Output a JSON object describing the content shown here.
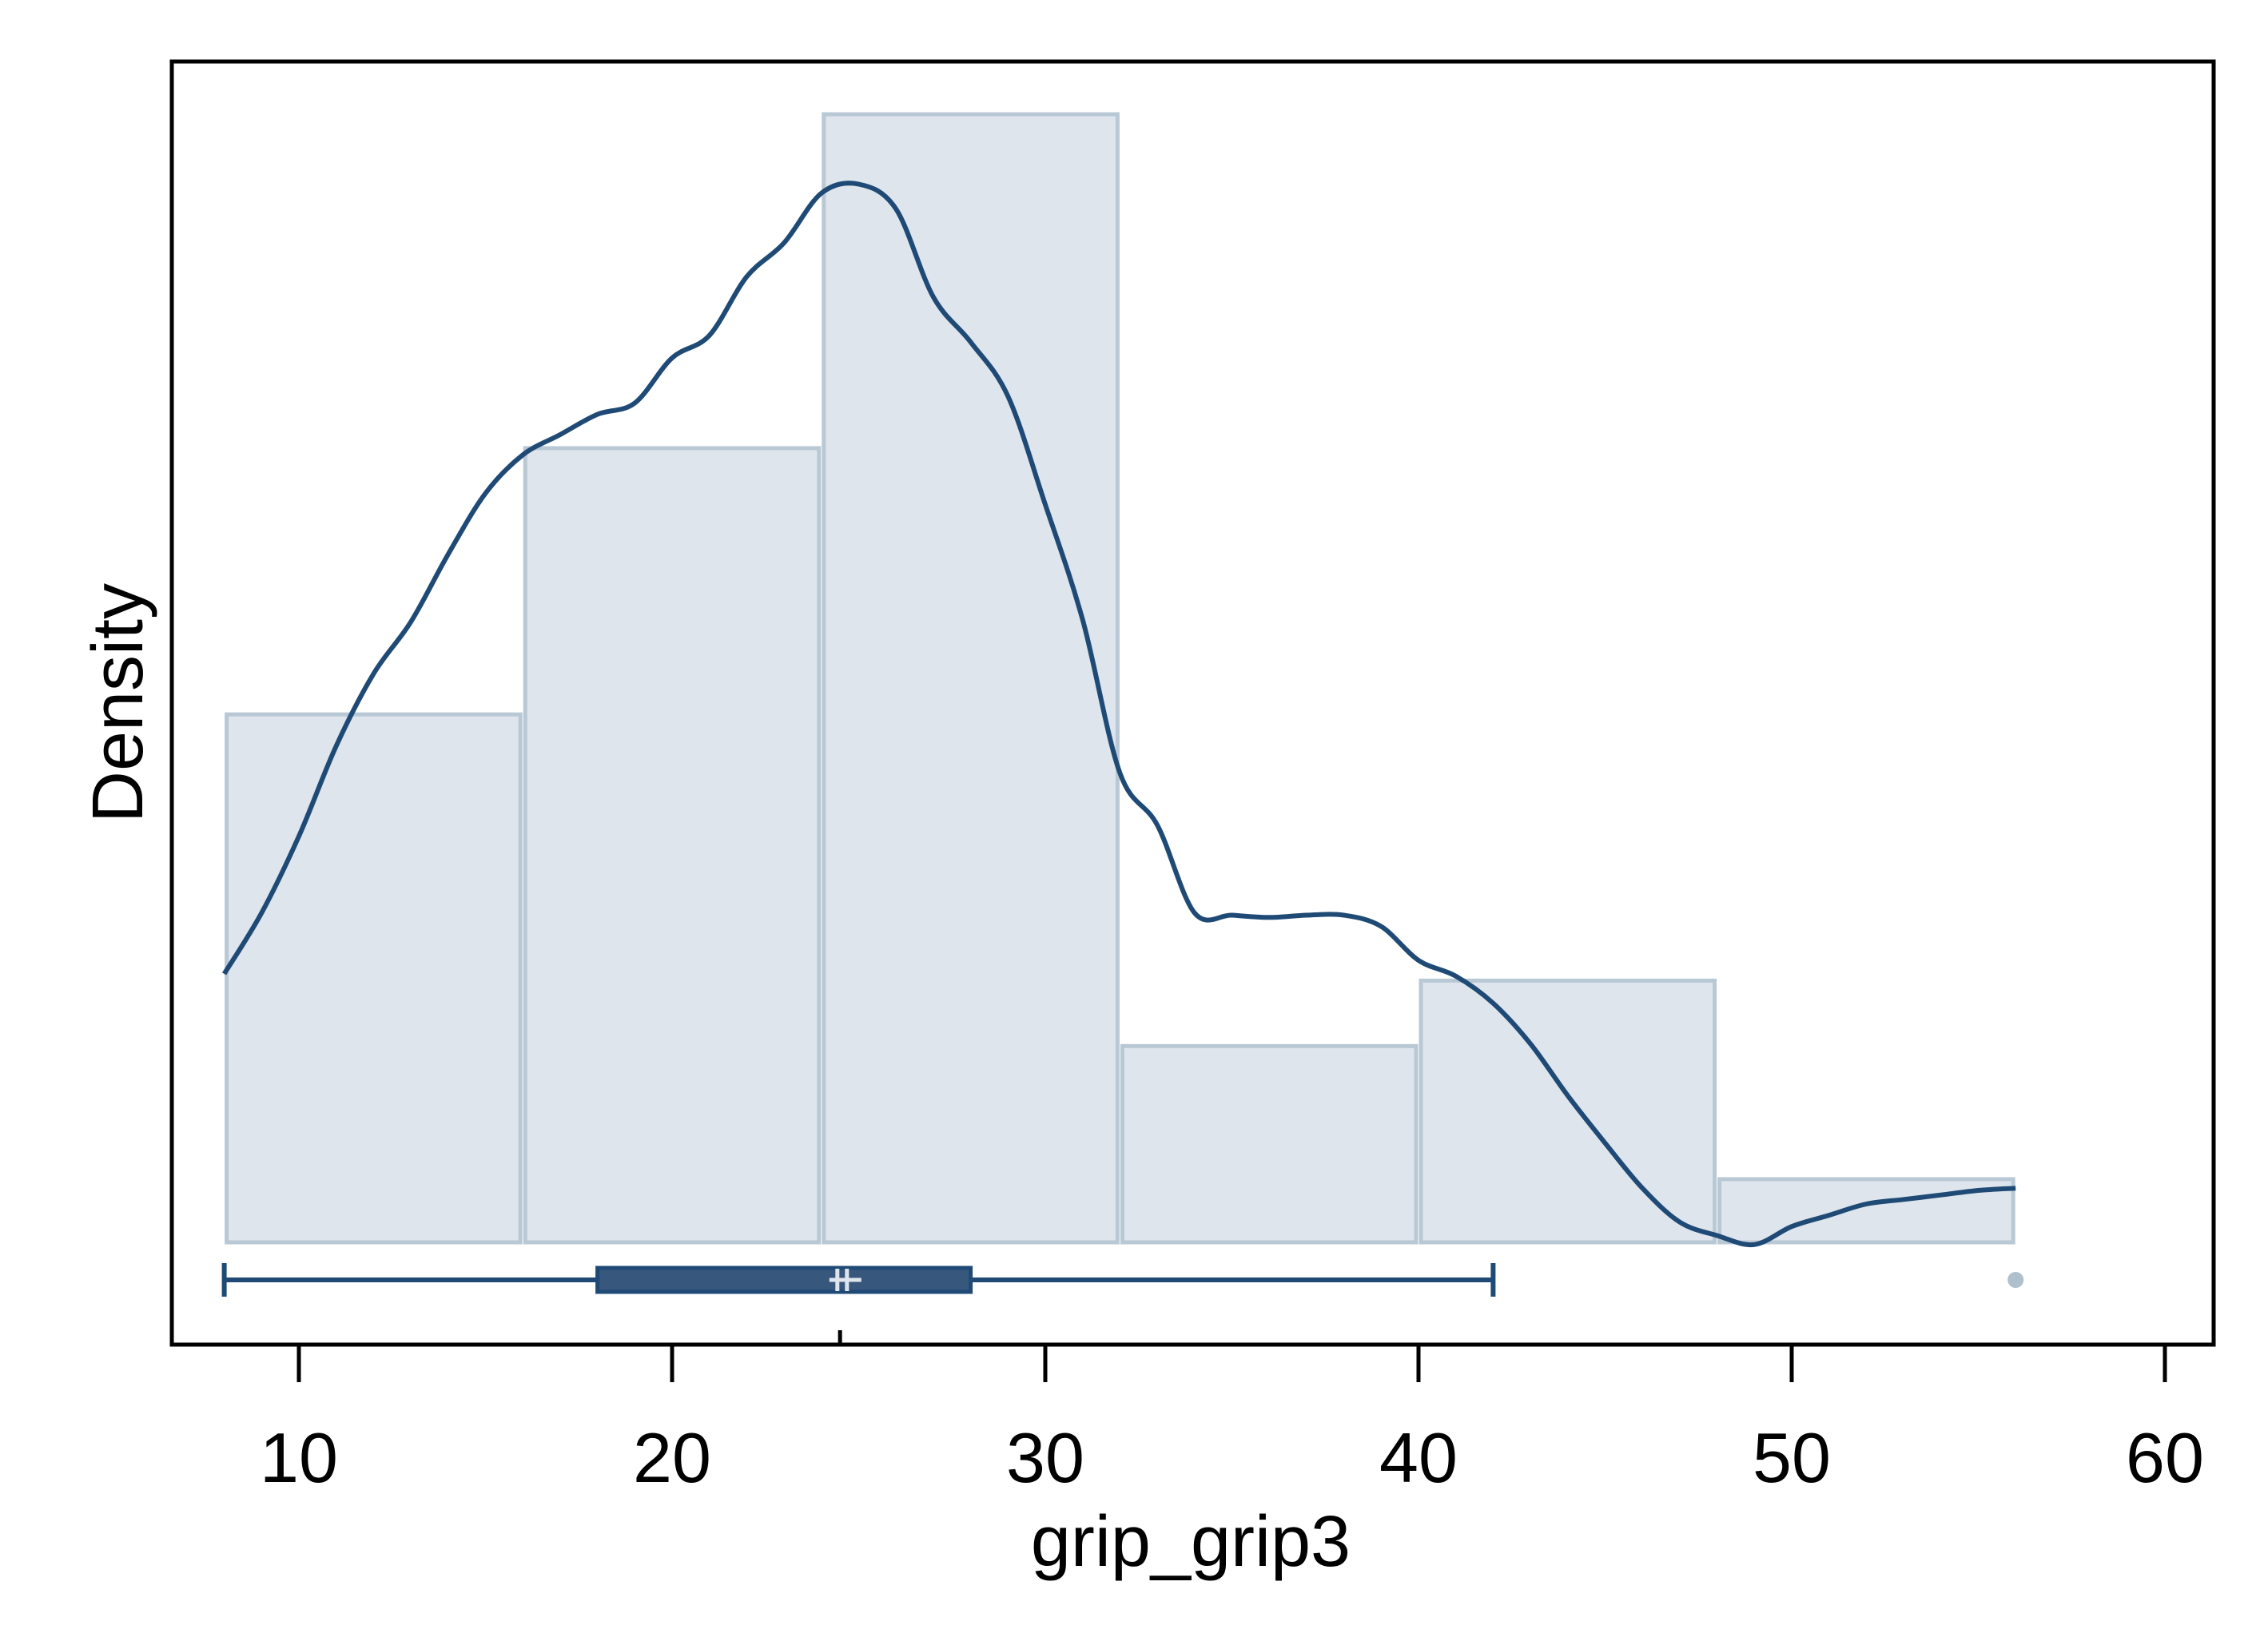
{
  "chart_data": {
    "type": "histogram",
    "title": "",
    "xlabel": "grip_grip3",
    "ylabel": "Density",
    "xlim": [
      6,
      61
    ],
    "ylim": [
      0,
      0.0485
    ],
    "x_ticks": [
      10,
      20,
      30,
      40,
      50,
      60
    ],
    "x_tick_labels": [
      "10",
      "20",
      "30",
      "40",
      "50",
      "60"
    ],
    "y_ticks_shown": false,
    "grid": false,
    "legend": "none",
    "colors": {
      "bar_fill": "#dee5ec",
      "bar_edge": "#b9c8d5",
      "kde_line": "#1f4a75",
      "box_fill": "#37577d",
      "box_line": "#1f4a75",
      "median_marker": "#dee5ec",
      "outlier": "#b0bfcd",
      "frame": "#000000"
    },
    "histogram": {
      "bins": [
        {
          "x0": 8,
          "x1": 16,
          "density": 0.0234
        },
        {
          "x0": 16,
          "x1": 24,
          "density": 0.0352
        },
        {
          "x0": 24,
          "x1": 32,
          "density": 0.05
        },
        {
          "x0": 32,
          "x1": 40,
          "density": 0.0087
        },
        {
          "x0": 40,
          "x1": 48,
          "density": 0.0116
        },
        {
          "x0": 48,
          "x1": 56,
          "density": 0.0028
        }
      ]
    },
    "kde": {
      "x": [
        8,
        9,
        10,
        11,
        12,
        13,
        14,
        15,
        16,
        17,
        18,
        19,
        20,
        21,
        22,
        23,
        24,
        25,
        26,
        27,
        28,
        29,
        30,
        31,
        32,
        33,
        34,
        35,
        36,
        37,
        38,
        39,
        40,
        41,
        42,
        43,
        44,
        45,
        46,
        47,
        48,
        49,
        50,
        51,
        52,
        53,
        54,
        55,
        56
      ],
      "y": [
        0.0119,
        0.0146,
        0.018,
        0.022,
        0.0252,
        0.0275,
        0.0305,
        0.0332,
        0.0349,
        0.0358,
        0.0367,
        0.0372,
        0.0392,
        0.0402,
        0.0428,
        0.0443,
        0.0465,
        0.0469,
        0.0458,
        0.0419,
        0.0399,
        0.0375,
        0.0327,
        0.0276,
        0.0208,
        0.0185,
        0.0146,
        0.0145,
        0.0144,
        0.0145,
        0.0145,
        0.014,
        0.0125,
        0.0118,
        0.0106,
        0.0088,
        0.0065,
        0.0044,
        0.0024,
        0.0009,
        0.0003,
        -0.0001,
        0.0007,
        0.0012,
        0.0017,
        0.0019,
        0.0021,
        0.0023,
        0.0024
      ]
    },
    "boxplot": {
      "whisker_low": 8,
      "q1": 18,
      "median": 24,
      "mean": 24.5,
      "q3": 28,
      "whisker_high": 42,
      "outliers": [
        56
      ]
    }
  }
}
